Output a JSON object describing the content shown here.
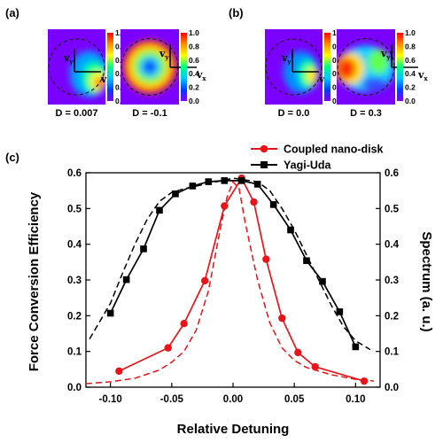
{
  "panels": {
    "a": {
      "label": "(a)",
      "maps": [
        {
          "d_label": "D = 0.007",
          "vec_x": "v",
          "vec_y": "v",
          "sub_x": "x",
          "sub_y": "y",
          "pattern": "lobe-right"
        },
        {
          "d_label": "D = -0.1",
          "vec_x": "v",
          "vec_y": "v",
          "sub_x": "x",
          "sub_y": "y",
          "pattern": "ring"
        }
      ]
    },
    "b": {
      "label": "(b)",
      "maps": [
        {
          "d_label": "D = 0.0",
          "vec_x": "v",
          "vec_y": "v",
          "sub_x": "x",
          "sub_y": "y",
          "pattern": "lobe-center"
        },
        {
          "d_label": "D = 0.3",
          "vec_x": "v",
          "vec_y": "v",
          "sub_x": "x",
          "sub_y": "y",
          "pattern": "lobe-left"
        }
      ]
    },
    "c": {
      "label": "(c)"
    }
  },
  "colorbar": {
    "ticks": [
      "1.0",
      "0.8",
      "0.6",
      "0.4",
      "0.2",
      "0.0"
    ],
    "stops": [
      "#ff0000",
      "#ff8c00",
      "#ffff00",
      "#00ff80",
      "#00c8ff",
      "#0040ff",
      "#8000ff"
    ]
  },
  "chart_data": {
    "type": "line",
    "xlabel": "Relative Detuning",
    "ylabel": "Force Conversion Efficiency",
    "ylabel_right": "Spectrum (a. u.)",
    "xlim": [
      -0.12,
      0.12
    ],
    "ylim": [
      0,
      0.6
    ],
    "ylim_right": [
      0,
      0.6
    ],
    "x_ticks": [
      "-0.10",
      "-0.05",
      "0.00",
      "0.05",
      "0.10"
    ],
    "x_tick_values": [
      -0.1,
      -0.05,
      0.0,
      0.05,
      0.1
    ],
    "y_ticks": [
      "0.0",
      "0.1",
      "0.2",
      "0.3",
      "0.4",
      "0.5",
      "0.6"
    ],
    "y_tick_values": [
      0,
      0.1,
      0.2,
      0.3,
      0.4,
      0.5,
      0.6
    ],
    "y_ticks_right": [
      "0.0",
      "0.1",
      "0.2",
      "0.3",
      "0.4",
      "0.5",
      "0.6"
    ],
    "legend_position": "top-right",
    "series": [
      {
        "name": "Coupled nano-disk",
        "color": "#e8141a",
        "marker": "circle",
        "axis": "left",
        "x": [
          -0.093,
          -0.053,
          -0.04,
          -0.023,
          -0.007,
          0.007,
          0.017,
          0.027,
          0.04,
          0.053,
          0.067,
          0.107
        ],
        "y": [
          0.045,
          0.11,
          0.178,
          0.298,
          0.507,
          0.585,
          0.518,
          0.358,
          0.193,
          0.097,
          0.057,
          0.017
        ]
      },
      {
        "name": "Yagi-Uda",
        "color": "#000000",
        "marker": "square",
        "axis": "left",
        "x": [
          -0.1,
          -0.087,
          -0.073,
          -0.06,
          -0.047,
          -0.033,
          -0.02,
          -0.007,
          0.007,
          0.02,
          0.033,
          0.047,
          0.06,
          0.073,
          0.087,
          0.1
        ],
        "y": [
          0.207,
          0.301,
          0.387,
          0.495,
          0.541,
          0.563,
          0.575,
          0.578,
          0.578,
          0.568,
          0.511,
          0.44,
          0.354,
          0.296,
          0.211,
          0.113
        ]
      },
      {
        "name": "",
        "color": "#e8141a",
        "style": "dashed",
        "axis": "right",
        "x": [
          -0.12,
          -0.1,
          -0.08,
          -0.06,
          -0.05,
          -0.04,
          -0.03,
          -0.02,
          -0.01,
          -0.005,
          0.0,
          0.005,
          0.01,
          0.02,
          0.03,
          0.04,
          0.05,
          0.06,
          0.08,
          0.1,
          0.115
        ],
        "y": [
          0.01,
          0.015,
          0.025,
          0.048,
          0.07,
          0.1,
          0.16,
          0.27,
          0.45,
          0.53,
          0.575,
          0.555,
          0.46,
          0.3,
          0.18,
          0.11,
          0.075,
          0.055,
          0.035,
          0.022,
          0.017
        ]
      },
      {
        "name": "",
        "color": "#000000",
        "style": "dashed",
        "axis": "right",
        "x": [
          -0.117,
          -0.1,
          -0.09,
          -0.08,
          -0.07,
          -0.06,
          -0.05,
          -0.04,
          -0.02,
          0.0,
          0.02,
          0.03,
          0.04,
          0.05,
          0.06,
          0.07,
          0.08,
          0.09,
          0.1,
          0.112
        ],
        "y": [
          0.135,
          0.235,
          0.32,
          0.4,
          0.47,
          0.52,
          0.545,
          0.555,
          0.57,
          0.585,
          0.575,
          0.55,
          0.5,
          0.44,
          0.37,
          0.3,
          0.23,
          0.17,
          0.13,
          0.105
        ]
      }
    ]
  }
}
